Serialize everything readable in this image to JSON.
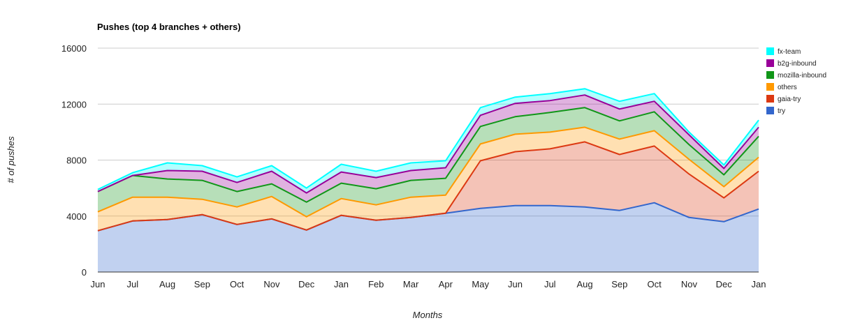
{
  "chart_data": {
    "type": "area",
    "stacked": true,
    "title": "Pushes (top 4 branches + others)",
    "xlabel": "Months",
    "ylabel": "# of pushes",
    "categories": [
      "Jun",
      "Jul",
      "Aug",
      "Sep",
      "Oct",
      "Nov",
      "Dec",
      "Jan",
      "Feb",
      "Mar",
      "Apr",
      "May",
      "Jun",
      "Jul",
      "Aug",
      "Sep",
      "Oct",
      "Nov",
      "Dec",
      "Jan"
    ],
    "ylim": [
      0,
      16000
    ],
    "yticks": [
      0,
      4000,
      8000,
      12000,
      16000
    ],
    "grid": true,
    "legend_position": "right",
    "series": [
      {
        "name": "try",
        "color": "#3366cc",
        "values": [
          2950,
          3650,
          3750,
          4100,
          3400,
          3800,
          3000,
          4050,
          3700,
          3900,
          4200,
          4550,
          4750,
          4750,
          4650,
          4400,
          4950,
          3900,
          3600,
          4500
        ]
      },
      {
        "name": "gaia-try",
        "color": "#dc3912",
        "values": [
          0,
          0,
          0,
          0,
          0,
          0,
          0,
          0,
          0,
          0,
          0,
          3400,
          3850,
          4050,
          4650,
          4000,
          4050,
          3100,
          1700,
          2700
        ]
      },
      {
        "name": "others",
        "color": "#ff9900",
        "values": [
          1350,
          1700,
          1600,
          1100,
          1250,
          1600,
          950,
          1200,
          1100,
          1450,
          1300,
          1200,
          1250,
          1200,
          1050,
          1100,
          1100,
          1050,
          800,
          1000
        ]
      },
      {
        "name": "mozilla-inbound",
        "color": "#109618",
        "values": [
          1450,
          1550,
          1300,
          1350,
          1100,
          900,
          1050,
          1100,
          1150,
          1200,
          1200,
          1250,
          1250,
          1400,
          1400,
          1300,
          1350,
          1050,
          850,
          1500
        ]
      },
      {
        "name": "b2g-inbound",
        "color": "#990099",
        "values": [
          0,
          0,
          600,
          650,
          650,
          900,
          650,
          800,
          800,
          700,
          750,
          800,
          950,
          850,
          900,
          850,
          750,
          700,
          450,
          650
        ]
      },
      {
        "name": "fx-team",
        "color": "#00ffff",
        "values": [
          150,
          200,
          550,
          400,
          400,
          400,
          350,
          550,
          450,
          550,
          500,
          550,
          450,
          500,
          450,
          550,
          550,
          200,
          250,
          500
        ]
      }
    ]
  }
}
